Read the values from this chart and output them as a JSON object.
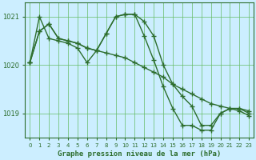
{
  "title": "Graphe pression niveau de la mer (hPa)",
  "background_color": "#cceeff",
  "line_color": "#2d6e2d",
  "grid_color": "#66bb66",
  "hours": [
    0,
    1,
    2,
    3,
    4,
    5,
    6,
    7,
    8,
    9,
    10,
    11,
    12,
    13,
    14,
    15,
    16,
    17,
    18,
    19,
    20,
    21,
    22,
    23
  ],
  "series1": [
    1020.05,
    1020.7,
    1020.85,
    1020.55,
    1020.5,
    1020.45,
    1020.35,
    1020.3,
    1020.25,
    1020.2,
    1020.15,
    1020.05,
    1019.95,
    1019.85,
    1019.75,
    1019.6,
    1019.5,
    1019.4,
    1019.3,
    1019.2,
    1019.15,
    1019.1,
    1019.1,
    1019.05
  ],
  "series2": [
    1020.05,
    1021.0,
    1020.55,
    1020.5,
    1020.45,
    1020.35,
    1020.05,
    1020.3,
    1020.65,
    1021.0,
    1021.05,
    1021.05,
    1020.9,
    1020.6,
    1020.0,
    1019.6,
    1019.35,
    1019.15,
    1018.75,
    1018.75,
    1019.0,
    1019.1,
    1019.1,
    1019.0
  ],
  "series3": [
    1020.05,
    1020.7,
    1020.85,
    1020.55,
    1020.5,
    1020.45,
    1020.35,
    1020.3,
    1020.65,
    1021.0,
    1021.05,
    1021.05,
    1020.6,
    1020.1,
    1019.55,
    1019.1,
    1018.75,
    1018.75,
    1018.65,
    1018.65,
    1019.0,
    1019.1,
    1019.05,
    1018.95
  ],
  "ylim": [
    1018.5,
    1021.3
  ],
  "yticks": [
    1019.0,
    1020.0,
    1021.0
  ],
  "xlim": [
    -0.5,
    23.5
  ]
}
